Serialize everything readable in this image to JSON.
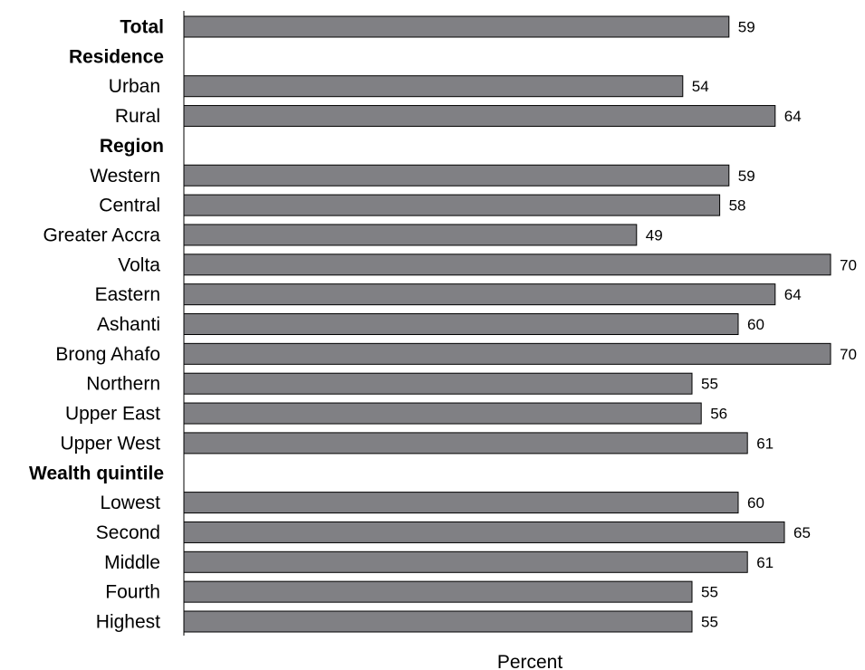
{
  "chart_data": {
    "type": "bar",
    "orientation": "horizontal",
    "xlabel": "Percent",
    "ylabel": "",
    "xlim": [
      0,
      70
    ],
    "grid": false,
    "legend": "none",
    "bar_color": "#808084",
    "bar_edge_color": "#000000",
    "categories": [
      {
        "label": "Total",
        "value": 59,
        "heading": true
      },
      {
        "label": "Residence",
        "value": null,
        "heading": true
      },
      {
        "label": "Urban",
        "value": 54
      },
      {
        "label": "Rural",
        "value": 64
      },
      {
        "label": "Region",
        "value": null,
        "heading": true
      },
      {
        "label": "Western",
        "value": 59
      },
      {
        "label": "Central",
        "value": 58
      },
      {
        "label": "Greater Accra",
        "value": 49
      },
      {
        "label": "Volta",
        "value": 70
      },
      {
        "label": "Eastern",
        "value": 64
      },
      {
        "label": "Ashanti",
        "value": 60
      },
      {
        "label": "Brong Ahafo",
        "value": 70
      },
      {
        "label": "Northern",
        "value": 55
      },
      {
        "label": "Upper East",
        "value": 56
      },
      {
        "label": "Upper West",
        "value": 61
      },
      {
        "label": "Wealth quintile",
        "value": null,
        "heading": true
      },
      {
        "label": "Lowest",
        "value": 60
      },
      {
        "label": "Second",
        "value": 65
      },
      {
        "label": "Middle",
        "value": 61
      },
      {
        "label": "Fourth",
        "value": 55
      },
      {
        "label": "Highest",
        "value": 55
      }
    ]
  }
}
